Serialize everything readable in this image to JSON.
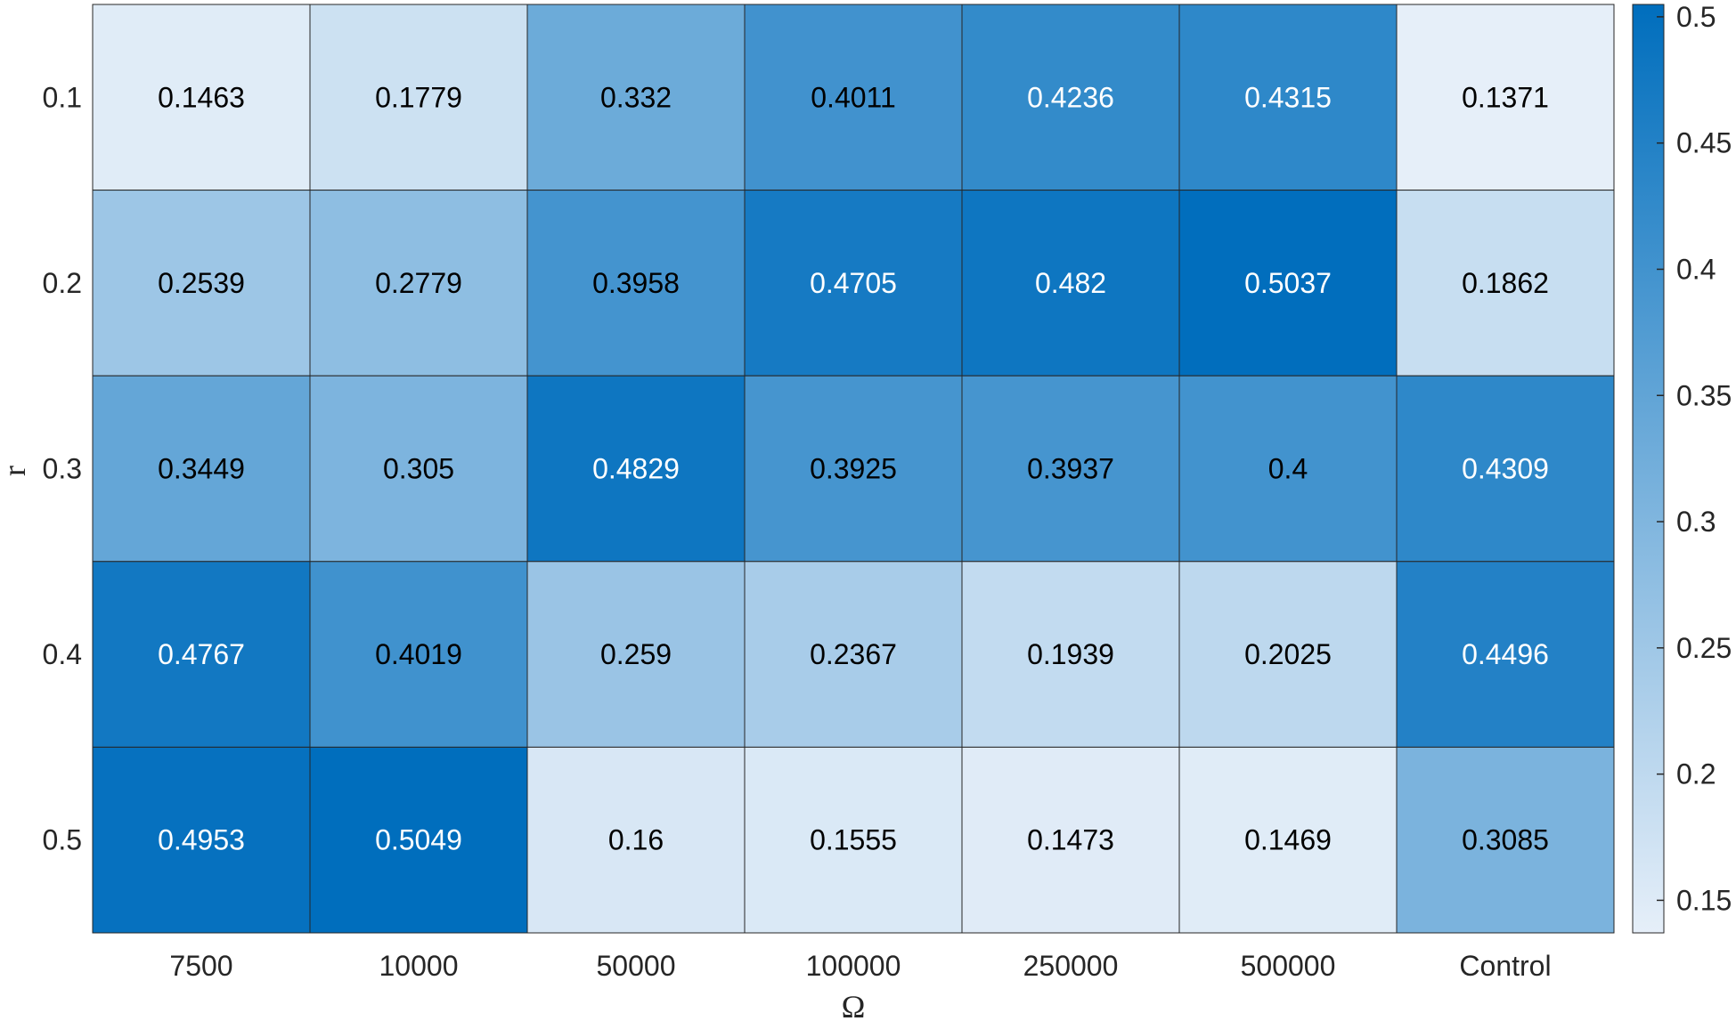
{
  "chart_data": {
    "type": "heatmap",
    "title": "",
    "xlabel": "Ω",
    "ylabel": "r",
    "x_categories": [
      "7500",
      "10000",
      "50000",
      "100000",
      "250000",
      "500000",
      "Control"
    ],
    "y_categories": [
      "0.1",
      "0.2",
      "0.3",
      "0.4",
      "0.5"
    ],
    "values": [
      [
        0.1463,
        0.1779,
        0.332,
        0.4011,
        0.4236,
        0.4315,
        0.1371
      ],
      [
        0.2539,
        0.2779,
        0.3958,
        0.4705,
        0.482,
        0.5037,
        0.1862
      ],
      [
        0.3449,
        0.305,
        0.4829,
        0.3925,
        0.3937,
        0.4,
        0.4309
      ],
      [
        0.4767,
        0.4019,
        0.259,
        0.2367,
        0.1939,
        0.2025,
        0.4496
      ],
      [
        0.4953,
        0.5049,
        0.16,
        0.1555,
        0.1473,
        0.1469,
        0.3085
      ]
    ],
    "value_labels": [
      [
        "0.1463",
        "0.1779",
        "0.332",
        "0.4011",
        "0.4236",
        "0.4315",
        "0.1371"
      ],
      [
        "0.2539",
        "0.2779",
        "0.3958",
        "0.4705",
        "0.482",
        "0.5037",
        "0.1862"
      ],
      [
        "0.3449",
        "0.305",
        "0.4829",
        "0.3925",
        "0.3937",
        "0.4",
        "0.4309"
      ],
      [
        "0.4767",
        "0.4019",
        "0.259",
        "0.2367",
        "0.1939",
        "0.2025",
        "0.4496"
      ],
      [
        "0.4953",
        "0.5049",
        "0.16",
        "0.1555",
        "0.1473",
        "0.1469",
        "0.3085"
      ]
    ],
    "colorbar": {
      "range": [
        0.1371,
        0.5049
      ],
      "ticks": [
        0.15,
        0.2,
        0.25,
        0.3,
        0.35,
        0.4,
        0.45,
        0.5
      ],
      "tick_labels": [
        "0.15",
        "0.2",
        "0.25",
        "0.3",
        "0.35",
        "0.4",
        "0.45",
        "0.5"
      ],
      "color_low": "#e6eff9",
      "color_high": "#006ebd"
    },
    "text_color_dark": "#000000",
    "text_color_light": "#ffffff",
    "grid": true
  }
}
